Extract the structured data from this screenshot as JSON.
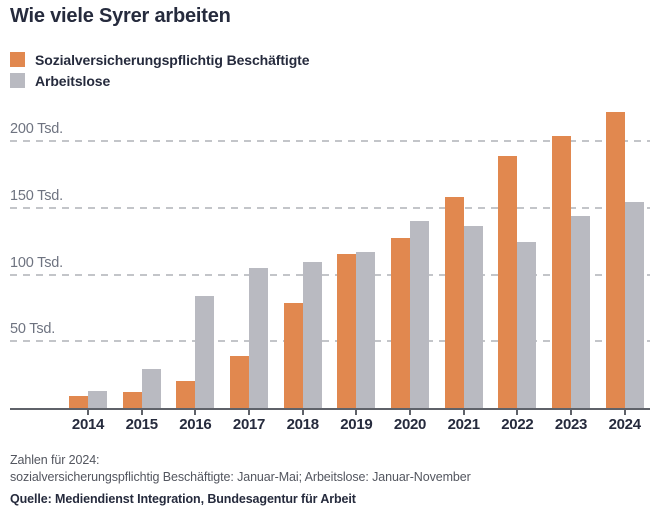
{
  "title": "Wie viele Syrer arbeiten",
  "colors": {
    "employed": "#E1884F",
    "unemployed": "#B9BAC1",
    "text_dark": "#262B3D",
    "axis_label": "#6E7380",
    "gridline": "#C3C5C9",
    "axis_line": "#5F6269",
    "footnote": "#53565F"
  },
  "legend": {
    "items": [
      {
        "label": "Sozialversicherungspflichtig Beschäftigte",
        "color": "#E1884F"
      },
      {
        "label": "Arbeitslose",
        "color": "#B9BAC1"
      }
    ]
  },
  "chart_data": {
    "type": "bar",
    "title": "Wie viele Syrer arbeiten",
    "categories": [
      "2014",
      "2015",
      "2016",
      "2017",
      "2018",
      "2019",
      "2020",
      "2021",
      "2022",
      "2023",
      "2024"
    ],
    "series": [
      {
        "name": "Sozialversicherungspflichtig Beschäftigte",
        "color": "#E1884F",
        "values": [
          9,
          12,
          20,
          39,
          79,
          115,
          127,
          158,
          189,
          204,
          222
        ]
      },
      {
        "name": "Arbeitslose",
        "color": "#B9BAC1",
        "values": [
          13,
          29,
          84,
          105,
          109,
          117,
          140,
          136,
          124,
          144,
          154
        ]
      }
    ],
    "unit": "Tsd.",
    "y_ticks": [
      {
        "value": 50,
        "label": "50 Tsd."
      },
      {
        "value": 100,
        "label": "100 Tsd."
      },
      {
        "value": 150,
        "label": "150 Tsd."
      },
      {
        "value": 200,
        "label": "200 Tsd."
      }
    ],
    "ylim": [
      0,
      230
    ],
    "grid": "horizontal-dashed",
    "legend_position": "top-left",
    "xlabel": "",
    "ylabel": ""
  },
  "footnote": {
    "line1": "Zahlen für 2024:",
    "line2": "sozialversicherungspflichtig Beschäftigte: Januar-Mai; Arbeitslose: Januar-November"
  },
  "source": "Quelle: Mediendienst Integration, Bundesagentur für Arbeit"
}
